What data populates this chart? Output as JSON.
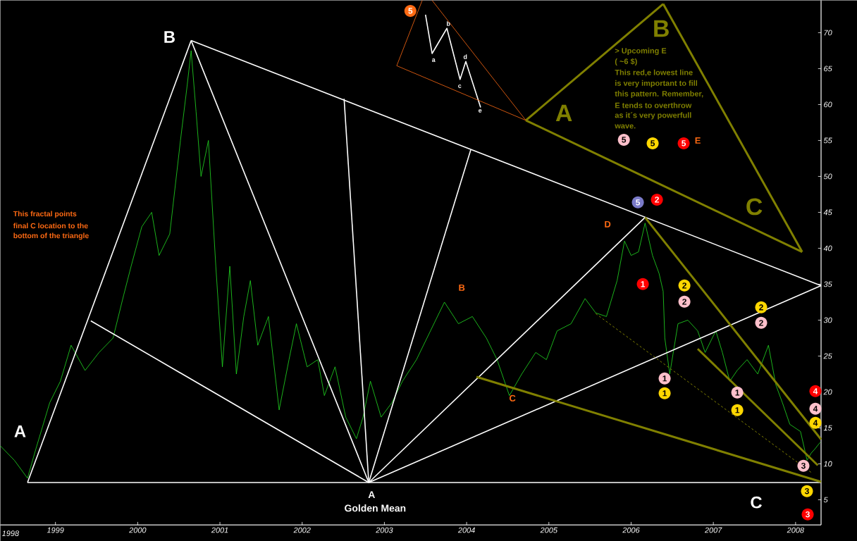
{
  "chart_data": {
    "type": "line",
    "xlim": [
      1998.33,
      2008.31
    ],
    "ylim": [
      1.5,
      74.5
    ],
    "xticks": [
      1999,
      2000,
      2001,
      2002,
      2003,
      2004,
      2005,
      2006,
      2007,
      2008
    ],
    "yticks": [
      5,
      10,
      15,
      20,
      25,
      30,
      35,
      40,
      45,
      50,
      55,
      60,
      65,
      70
    ],
    "series": [
      {
        "color": "#22dd22",
        "x": [
          1998.33,
          1998.5,
          1998.66,
          1998.76,
          1998.93,
          1999.06,
          1999.19,
          1999.36,
          1999.53,
          1999.7,
          1999.83,
          1999.92,
          2000.05,
          2000.17,
          2000.26,
          2000.39,
          2000.52,
          2000.6,
          2000.65,
          2000.71,
          2000.77,
          2000.86,
          2000.95,
          2001.03,
          2001.12,
          2001.2,
          2001.29,
          2001.37,
          2001.46,
          2001.59,
          2001.72,
          2001.84,
          2001.93,
          2002.06,
          2002.19,
          2002.27,
          2002.4,
          2002.53,
          2002.66,
          2002.74,
          2002.83,
          2002.96,
          2003.09,
          2003.22,
          2003.39,
          2003.56,
          2003.73,
          2003.9,
          2004.07,
          2004.24,
          2004.37,
          2004.52,
          2004.67,
          2004.84,
          2004.97,
          2005.1,
          2005.27,
          2005.44,
          2005.57,
          2005.7,
          2005.83,
          2005.92,
          2006.0,
          2006.09,
          2006.17,
          2006.26,
          2006.34,
          2006.39,
          2006.41,
          2006.47,
          2006.57,
          2006.69,
          2006.81,
          2006.9,
          2007.03,
          2007.11,
          2007.2,
          2007.29,
          2007.41,
          2007.54,
          2007.67,
          2007.76,
          2007.84,
          2007.93,
          2008.06,
          2008.14,
          2008.19,
          2008.23,
          2008.3
        ],
        "values": [
          12.5,
          10.5,
          8,
          12,
          18.5,
          21.5,
          26.5,
          23,
          25.5,
          27.5,
          33.5,
          37.5,
          43,
          45,
          39,
          42,
          55,
          62.5,
          67.5,
          59,
          50,
          55,
          37.5,
          23.5,
          37.5,
          22.5,
          30.5,
          35.5,
          26.5,
          30.5,
          17.5,
          24.5,
          29.5,
          23.5,
          24.5,
          19.5,
          23.5,
          16.5,
          13.5,
          16.5,
          21.5,
          16.5,
          18.5,
          21.5,
          24.5,
          28.5,
          32.5,
          29.5,
          30.5,
          27.5,
          24.5,
          19.5,
          22.5,
          25.5,
          24.5,
          28.5,
          29.5,
          33,
          31,
          30.5,
          35.5,
          41,
          39,
          39.5,
          43.5,
          39,
          36.5,
          34,
          27.5,
          22.5,
          29.5,
          30,
          28.5,
          25.5,
          28.5,
          25.5,
          21.5,
          23,
          24.5,
          22.5,
          26.5,
          21,
          18.5,
          15.5,
          14.5,
          10.5,
          11.5,
          12,
          13
        ]
      },
      {
        "color": "#ffffff",
        "x": [
          1998.66,
          2000.65
        ],
        "values": [
          7.4,
          68.9
        ]
      },
      {
        "color": "#ffffff",
        "x": [
          2000.65,
          2002.81
        ],
        "values": [
          68.9,
          7.4
        ]
      },
      {
        "color": "#ffffff",
        "x": [
          1998.66,
          2008.31
        ],
        "values": [
          7.4,
          7.4
        ]
      },
      {
        "color": "#ffffff",
        "x": [
          2000.65,
          2008.31
        ],
        "values": [
          68.9,
          34.8
        ]
      },
      {
        "color": "#ffffff",
        "x": [
          1999.43,
          2002.81
        ],
        "values": [
          29.9,
          7.4
        ]
      },
      {
        "color": "#ffffff",
        "x": [
          2002.51,
          2002.81
        ],
        "values": [
          60.8,
          7.4
        ]
      },
      {
        "color": "#ffffff",
        "x": [
          2002.81,
          2004.05
        ],
        "values": [
          7.4,
          53.7
        ]
      },
      {
        "color": "#ffffff",
        "x": [
          2002.81,
          2006.17
        ],
        "values": [
          7.4,
          44.3
        ]
      },
      {
        "color": "#ffffff",
        "x": [
          2002.81,
          2008.31
        ],
        "values": [
          7.4,
          34.8
        ]
      },
      {
        "color": "#ffffff",
        "x": [
          2003.5,
          2003.58,
          2003.76,
          2003.92,
          2003.99,
          2004.17
        ],
        "values": [
          72.5,
          67.1,
          70.6,
          63.5,
          66,
          59.6
        ]
      },
      {
        "color": "#808000",
        "x": [
          2004.12,
          2008.31
        ],
        "values": [
          22.1,
          7.5
        ]
      },
      {
        "color": "#808000",
        "x": [
          2006.17,
          2008.31
        ],
        "values": [
          44.3,
          13.4
        ]
      },
      {
        "color": "#808000",
        "x": [
          2006.81,
          2008.27
        ],
        "values": [
          26,
          9.8
        ]
      },
      {
        "color": "#808000",
        "x": [
          2004.72,
          2006.39
        ],
        "values": [
          57.8,
          74
        ]
      },
      {
        "color": "#808000",
        "x": [
          2006.39,
          2008.08
        ],
        "values": [
          74,
          39.5
        ]
      },
      {
        "color": "#808000",
        "x": [
          2004.72,
          2008.08
        ],
        "values": [
          57.8,
          39.5
        ]
      },
      {
        "color": "#808000",
        "line_style": "dashed",
        "x": [
          2005.57,
          2008.19
        ],
        "values": [
          30.9,
          8.8
        ]
      },
      {
        "color": "#ff6a13",
        "x": [
          2003.15,
          2003.46
        ],
        "values": [
          65.4,
          74.5
        ]
      },
      {
        "color": "#ff6a13",
        "x": [
          2003.15,
          2004.72
        ],
        "values": [
          65.4,
          57.8
        ]
      },
      {
        "color": "#ff6a13",
        "x": [
          2003.58,
          2004.72
        ],
        "values": [
          74.5,
          57.8
        ]
      }
    ],
    "annotations": [
      "This fractal points",
      "final C location to the",
      "bottom of the triangle",
      "> Upcoming E",
      "( ~6 $)",
      "This red,e lowest line",
      "is very important to fill",
      "this pattern. Remember,",
      "E tends to overthrow",
      "as it´s very powerfull",
      "wave.",
      "1998",
      "A",
      "B",
      "A",
      "Golden Mean",
      "C",
      "B",
      "C",
      "D",
      "E",
      "A",
      "B",
      "C",
      "a",
      "b",
      "c",
      "d",
      "e",
      "5",
      "5",
      "5",
      "5",
      "5",
      "2",
      "1",
      "2",
      "2",
      "1",
      "1",
      "1",
      "1",
      "2",
      "2",
      "4",
      "4",
      "4",
      "3",
      "3",
      "3"
    ]
  }
}
